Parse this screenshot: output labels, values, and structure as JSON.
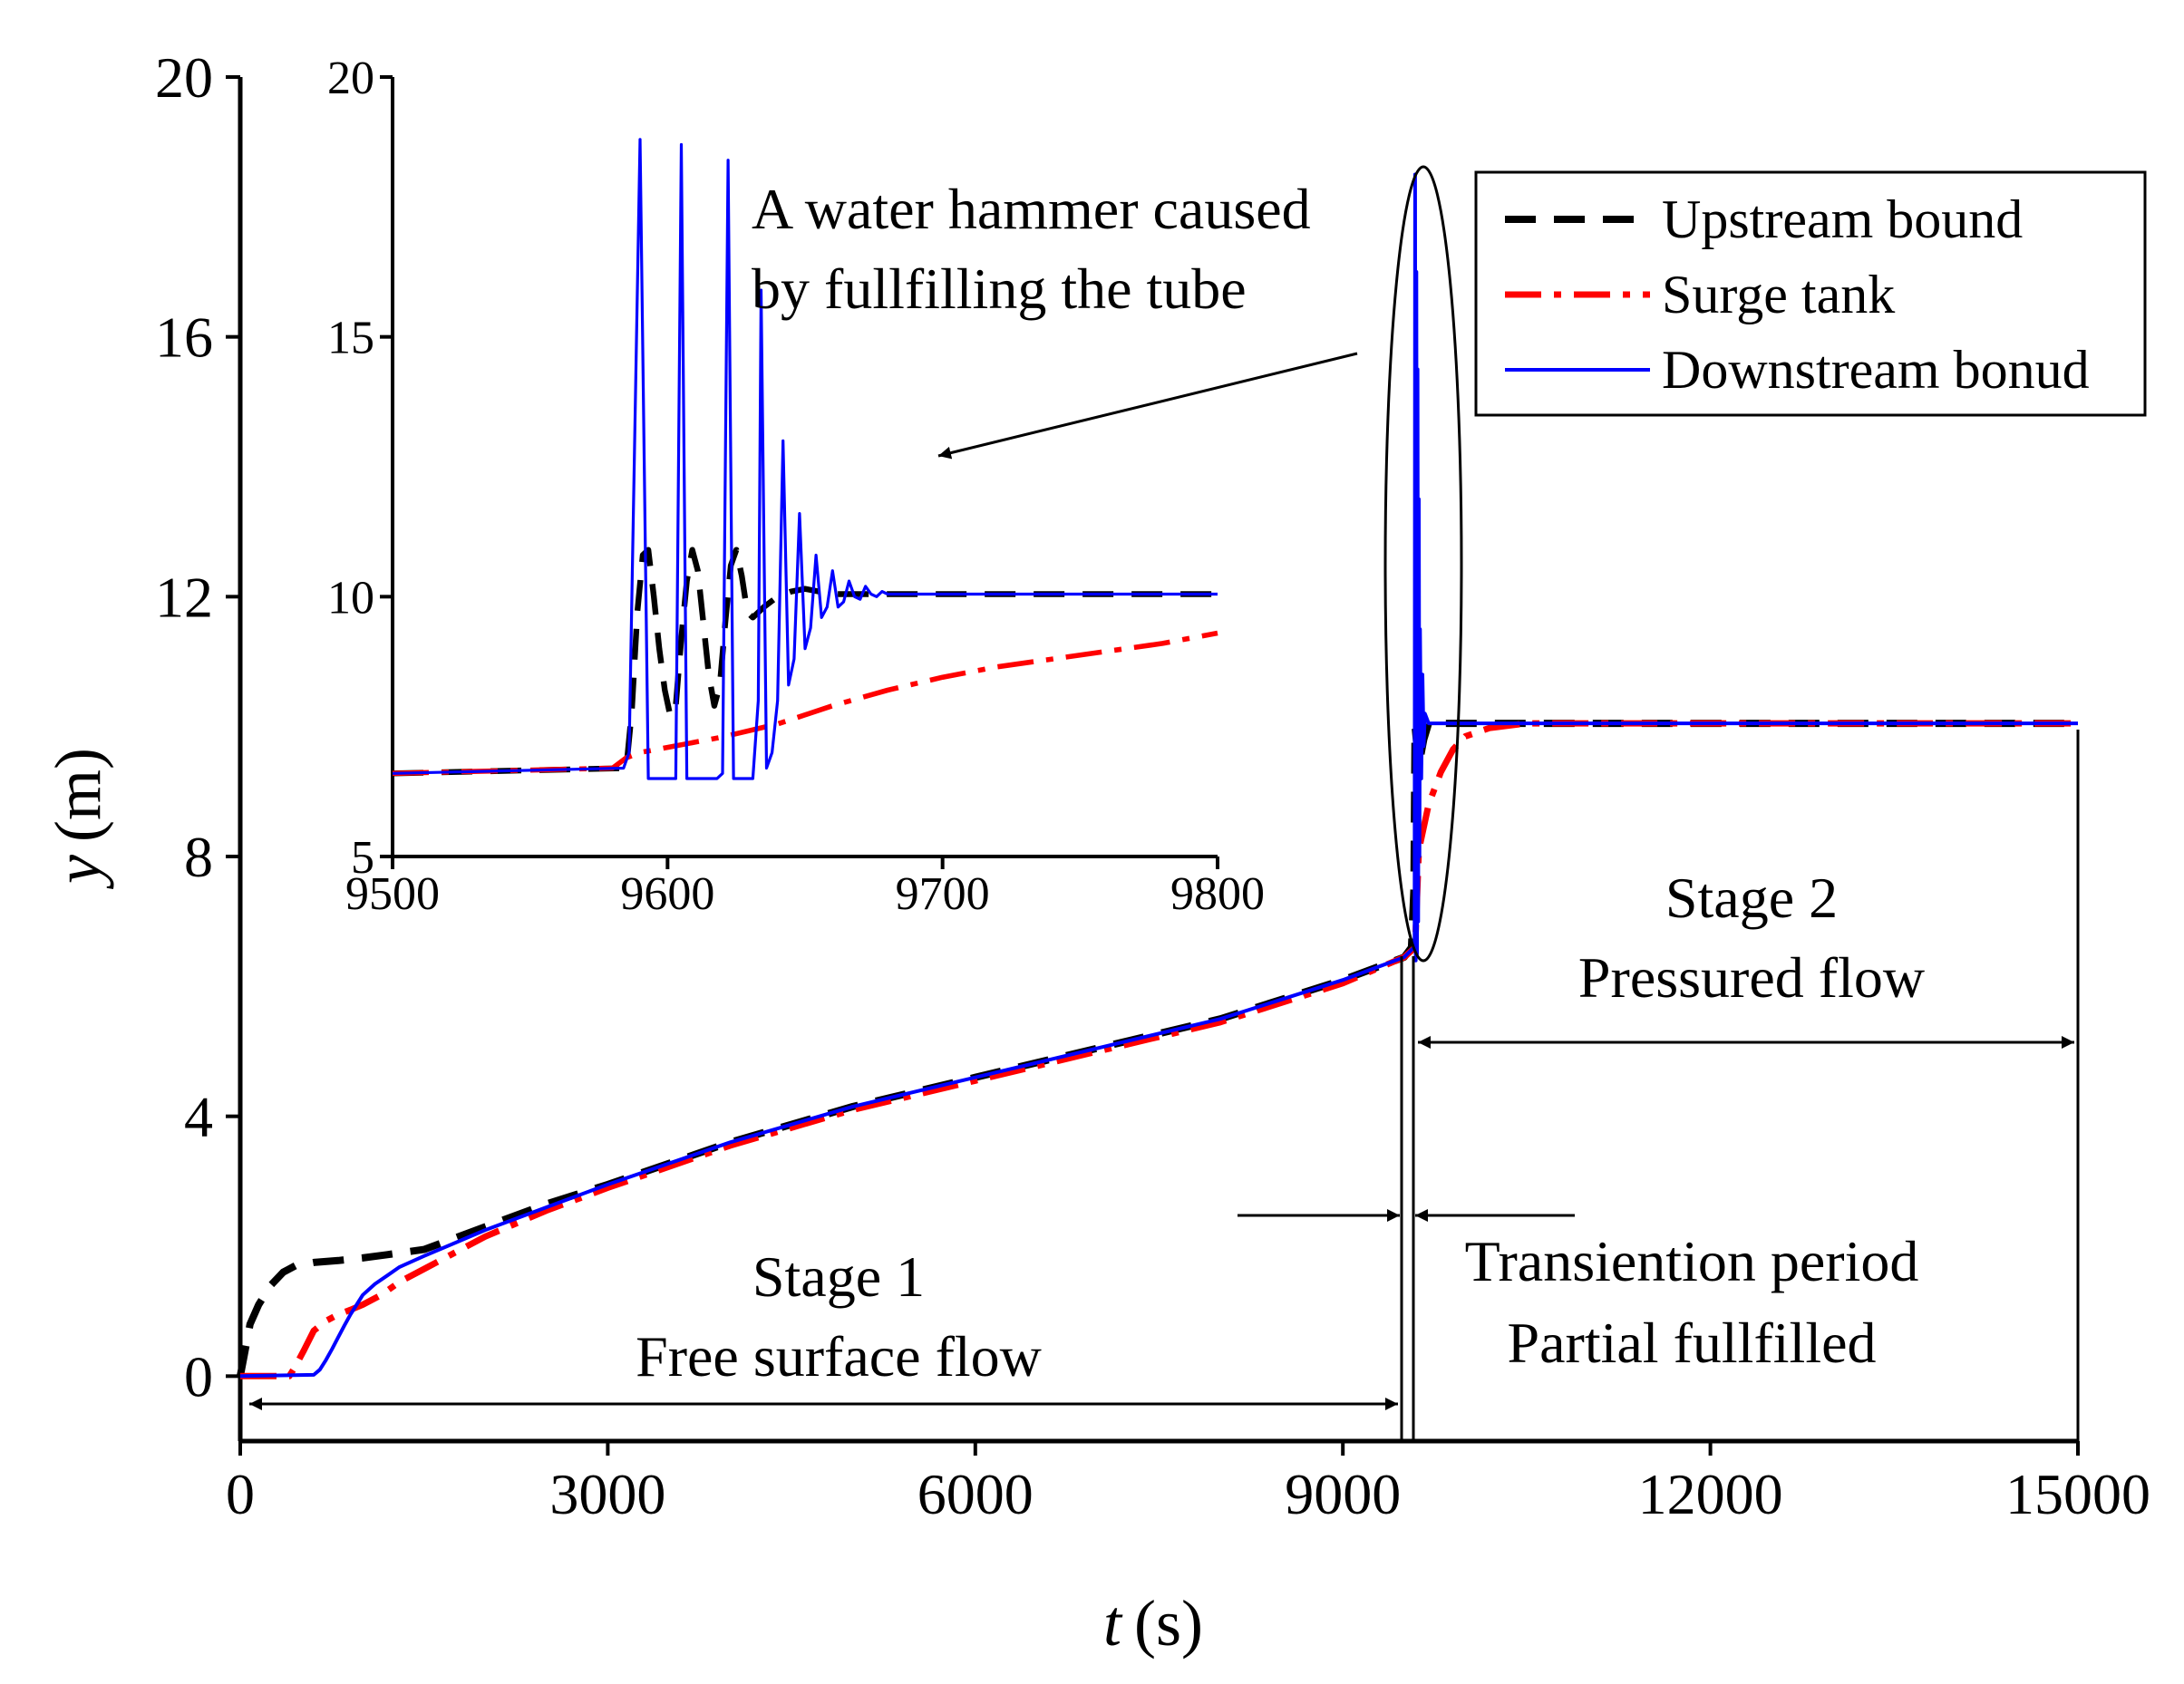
{
  "colors": {
    "upstream": "#000000",
    "surge": "#ff0000",
    "downstream": "#0000ff",
    "axis": "#000000"
  },
  "chart_data": [
    {
      "id": "main",
      "type": "line",
      "xlabel_var": "t",
      "xlabel_unit": "(s)",
      "ylabel_var": "y",
      "ylabel_unit": "(m)",
      "xlim": [
        0,
        15000
      ],
      "ylim": [
        -1,
        20
      ],
      "xticks": [
        0,
        3000,
        6000,
        9000,
        12000,
        15000
      ],
      "xtick_labels": [
        "0",
        "3000",
        "6000",
        "9000",
        "12000",
        "15000"
      ],
      "yticks": [
        0,
        4,
        8,
        12,
        16,
        20
      ],
      "ytick_labels": [
        "0",
        "4",
        "8",
        "12",
        "16",
        "20"
      ],
      "grid": false,
      "legend_position": "top-right",
      "series": [
        {
          "name": "Upstream bound",
          "style": "dashed",
          "x": [
            0,
            30,
            80,
            150,
            250,
            350,
            450,
            600,
            800,
            1000,
            1200,
            1500,
            2000,
            2500,
            3000,
            4000,
            5000,
            6000,
            7000,
            8000,
            9000,
            9500,
            9560,
            9580,
            9590,
            9620,
            9660,
            9700,
            10000,
            15000
          ],
          "y": [
            0,
            0.3,
            0.8,
            1.1,
            1.4,
            1.6,
            1.7,
            1.75,
            1.78,
            1.82,
            1.87,
            1.95,
            2.3,
            2.65,
            2.95,
            3.6,
            4.15,
            4.6,
            5.05,
            5.5,
            6.1,
            6.45,
            6.6,
            7.5,
            10.0,
            9.4,
            9.8,
            10.05,
            10.05,
            10.05
          ]
        },
        {
          "name": "Surge tank",
          "style": "dashdot",
          "x": [
            0,
            400,
            450,
            520,
            600,
            700,
            800,
            900,
            1000,
            1150,
            1300,
            1500,
            1700,
            2000,
            2500,
            3000,
            4000,
            5000,
            6000,
            7000,
            8000,
            9000,
            9500,
            9590,
            9620,
            9700,
            9800,
            9900,
            10000,
            10200,
            10500,
            15000
          ],
          "y": [
            0,
            0,
            0.15,
            0.4,
            0.7,
            0.85,
            0.95,
            1.02,
            1.1,
            1.25,
            1.45,
            1.65,
            1.85,
            2.15,
            2.55,
            2.9,
            3.55,
            4.1,
            4.55,
            5.0,
            5.45,
            6.05,
            6.45,
            6.6,
            8.1,
            8.8,
            9.3,
            9.65,
            9.85,
            9.98,
            10.05,
            10.05
          ]
        },
        {
          "name": "Downstream bonud",
          "style": "solid",
          "x": [
            0,
            600,
            650,
            700,
            750,
            800,
            850,
            900,
            950,
            1000,
            1100,
            1200,
            1300,
            1500,
            2000,
            2500,
            3000,
            4000,
            5000,
            6000,
            7000,
            8000,
            9000,
            9500,
            9580,
            9585,
            9590,
            9595,
            9600,
            9605,
            9610,
            9615,
            9620,
            9625,
            9630,
            9640,
            9650,
            9660,
            9670,
            9700,
            15000
          ],
          "y": [
            0,
            0.02,
            0.1,
            0.25,
            0.42,
            0.6,
            0.78,
            0.95,
            1.1,
            1.25,
            1.42,
            1.55,
            1.68,
            1.85,
            2.25,
            2.6,
            2.95,
            3.6,
            4.15,
            4.6,
            5.05,
            5.5,
            6.1,
            6.45,
            6.6,
            6.7,
            18.5,
            6.4,
            17.0,
            6.5,
            15.5,
            7.0,
            13.5,
            8.0,
            11.5,
            9.2,
            10.8,
            9.7,
            10.2,
            10.05,
            10.05
          ]
        }
      ]
    },
    {
      "id": "inset",
      "type": "line",
      "xlim": [
        9500,
        9800
      ],
      "ylim": [
        5,
        20
      ],
      "xticks": [
        9500,
        9600,
        9700,
        9800
      ],
      "xtick_labels": [
        "9500",
        "9600",
        "9700",
        "9800"
      ],
      "yticks": [
        5,
        10,
        15,
        20
      ],
      "ytick_labels": [
        "5",
        "10",
        "15",
        "20"
      ],
      "series": [
        {
          "name": "Upstream bound",
          "x": [
            9500,
            9585,
            9587,
            9589,
            9591,
            9593,
            9595,
            9597,
            9599,
            9601,
            9603,
            9605,
            9607,
            9609,
            9611,
            9613,
            9615,
            9617,
            9619,
            9621,
            9623,
            9625,
            9627,
            9629,
            9631,
            9635,
            9640,
            9645,
            9650,
            9655,
            9660,
            9680,
            9700,
            9800
          ],
          "y": [
            6.6,
            6.7,
            7.8,
            9.7,
            10.8,
            10.9,
            10.0,
            9.0,
            8.2,
            7.7,
            7.9,
            9.2,
            10.3,
            10.9,
            10.5,
            9.5,
            8.5,
            7.9,
            8.3,
            9.5,
            10.6,
            10.9,
            10.4,
            9.7,
            9.6,
            9.8,
            10.0,
            10.1,
            10.15,
            10.1,
            10.05,
            10.05,
            10.05,
            10.05
          ]
        },
        {
          "name": "Surge tank",
          "x": [
            9500,
            9580,
            9585,
            9590,
            9600,
            9620,
            9640,
            9660,
            9680,
            9700,
            9720,
            9740,
            9760,
            9780,
            9800
          ],
          "y": [
            6.6,
            6.7,
            6.9,
            7.0,
            7.1,
            7.3,
            7.55,
            7.9,
            8.2,
            8.45,
            8.65,
            8.8,
            8.95,
            9.1,
            9.3
          ],
          "note": "visual trend"
        },
        {
          "name": "Downstream bonud",
          "x": [
            9500,
            9584,
            9586,
            9590,
            9593,
            9596,
            9600,
            9603,
            9605,
            9607,
            9610,
            9614,
            9618,
            9620,
            9622,
            9624,
            9627,
            9631,
            9633,
            9634,
            9636,
            9638,
            9640,
            9642,
            9644,
            9646,
            9648,
            9650,
            9652,
            9654,
            9656,
            9658,
            9660,
            9662,
            9664,
            9666,
            9668,
            9670,
            9672,
            9674,
            9676,
            9678,
            9680,
            9690,
            9700,
            9800
          ],
          "y": [
            6.6,
            6.7,
            7.0,
            18.8,
            6.5,
            6.5,
            6.5,
            6.5,
            18.7,
            6.5,
            6.5,
            6.5,
            6.5,
            6.6,
            18.4,
            6.5,
            6.5,
            6.5,
            8.0,
            15.9,
            6.7,
            7.0,
            8.0,
            13.0,
            8.3,
            8.8,
            11.6,
            9.0,
            9.4,
            10.8,
            9.6,
            9.8,
            10.5,
            9.8,
            9.9,
            10.3,
            10.0,
            9.95,
            10.2,
            10.05,
            10.0,
            10.1,
            10.05,
            10.05,
            10.05,
            10.05
          ]
        }
      ]
    }
  ],
  "annotations": {
    "water_hammer_line1": "A water hammer caused",
    "water_hammer_line2": "by fullfilling the tube",
    "stage1_line1": "Stage 1",
    "stage1_line2": "Free surface flow",
    "stage2_line1": "Stage 2",
    "stage2_line2": "Pressured flow",
    "transition_line1": "Transiention period",
    "transition_line2": "Partial fullfilled"
  }
}
